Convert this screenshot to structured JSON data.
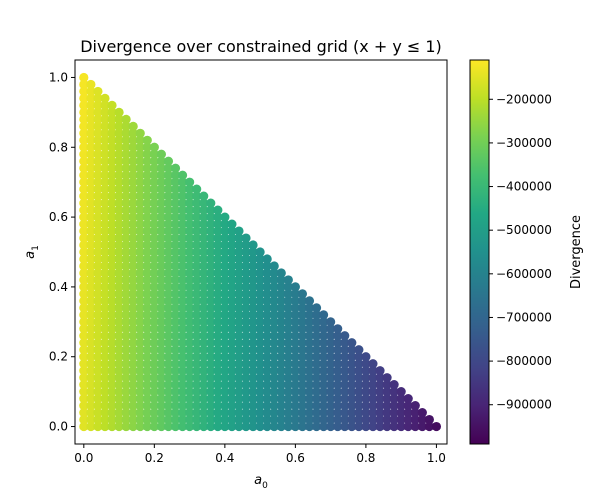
{
  "chart_data": {
    "type": "scatter",
    "title": "Divergence over constrained grid (x + y ≤ 1)",
    "xlabel": "a",
    "xlabel_sub": "0",
    "ylabel": "a",
    "ylabel_sub": "1",
    "xlim": [
      -0.025,
      1.03
    ],
    "ylim": [
      -0.05,
      1.05
    ],
    "xticks": [
      0.0,
      0.2,
      0.4,
      0.6,
      0.8,
      1.0
    ],
    "xtick_labels": [
      "0.0",
      "0.2",
      "0.4",
      "0.6",
      "0.8",
      "1.0"
    ],
    "yticks": [
      0.0,
      0.2,
      0.4,
      0.6,
      0.8,
      1.0
    ],
    "ytick_labels": [
      "0.0",
      "0.2",
      "0.4",
      "0.6",
      "0.8",
      "1.0"
    ],
    "grid_step": 0.02,
    "constraint": "x + y ≤ 1",
    "value_function": {
      "description": "Divergence decreases approximately linearly with a0; slight dependence on a1",
      "at_origin": -150000,
      "at_x1": -960000,
      "at_y1": -120000
    },
    "colorbar": {
      "label": "Divergence",
      "colormap": "viridis",
      "vmin": -990000,
      "vmax": -110000,
      "ticks": [
        -200000,
        -300000,
        -400000,
        -500000,
        -600000,
        -700000,
        -800000,
        -900000
      ],
      "tick_labels": [
        "−200000",
        "−300000",
        "−400000",
        "−500000",
        "−600000",
        "−700000",
        "−800000",
        "−900000"
      ]
    },
    "grid": false,
    "legend": "none"
  }
}
